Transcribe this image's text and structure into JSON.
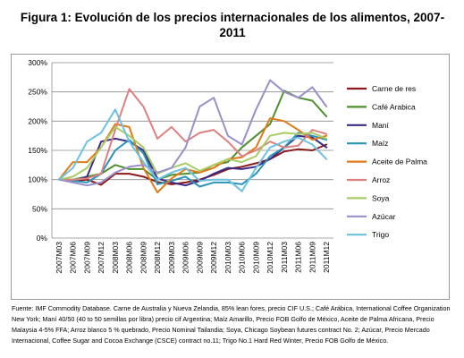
{
  "figure": {
    "title": "Figura 1: Evolución de los precios internacionales de los alimentos, 2007-2011",
    "footnote": "Fuente: IMF Commodity Database. Carne de Australia y Nueva Zelandia, 85% lean fores, precio CIF U.S.; Café Arábica, International Coffee Organization New York; Maní 40/50 (40 to 50 semillas por libra) precio cif Argentina; Maíz Amarillo, Precio FOB Golfo de México, Aceite de Palma Africana, Precio Malaysia 4-5% FFA; Arroz blanco 5 % quebrado, Precio Nominal Tailandia; Soya, Chicago Soybean futures contract No. 2; Azúcar, Precio Mercado Internacional, Coffee Sugar and Cocoa Exchange (CSCE) contract no.11; Trigo No.1 Hard Red Winter, Precio FOB Golfo de México."
  },
  "chart_data": {
    "type": "line",
    "title": "Figura 1: Evolución de los precios internacionales de los alimentos, 2007-2011",
    "xlabel": "",
    "ylabel": "",
    "ylim": [
      0,
      3
    ],
    "yticks": [
      "0%",
      "50%",
      "100%",
      "150%",
      "200%",
      "250%",
      "300%"
    ],
    "grid": true,
    "legend_position": "right",
    "x": [
      "2007M03",
      "2007M06",
      "2007M09",
      "2007M12",
      "2008M03",
      "2008M06",
      "2008M09",
      "2008M12",
      "2009M03",
      "2009M06",
      "2009M09",
      "2009M12",
      "2010M03",
      "2010M06",
      "2010M09",
      "2010M12",
      "2011M03",
      "2011M06",
      "2011M09",
      "2011M12"
    ],
    "series": [
      {
        "name": "Carne de res",
        "color": "#8b1a1a",
        "values": [
          1.0,
          0.98,
          1.0,
          0.91,
          1.1,
          1.1,
          1.05,
          0.96,
          0.92,
          0.95,
          1.0,
          1.08,
          1.18,
          1.22,
          1.28,
          1.35,
          1.48,
          1.52,
          1.5,
          1.6
        ]
      },
      {
        "name": "Café Arabica",
        "color": "#4e8f2e",
        "values": [
          1.0,
          1.0,
          1.05,
          1.1,
          1.25,
          1.18,
          1.18,
          1.0,
          1.08,
          1.1,
          1.12,
          1.25,
          1.3,
          1.55,
          1.75,
          1.95,
          2.52,
          2.4,
          2.35,
          2.08
        ]
      },
      {
        "name": "Maní",
        "color": "#3b2a86",
        "values": [
          1.0,
          0.98,
          1.05,
          1.65,
          1.7,
          1.65,
          1.5,
          1.02,
          0.95,
          0.9,
          0.98,
          1.1,
          1.2,
          1.18,
          1.22,
          1.35,
          1.55,
          1.75,
          1.72,
          1.55
        ]
      },
      {
        "name": "Maíz",
        "color": "#2c93b8",
        "values": [
          1.0,
          0.98,
          0.95,
          1.1,
          1.5,
          1.68,
          1.45,
          0.92,
          0.98,
          1.05,
          0.88,
          0.95,
          0.95,
          0.92,
          1.1,
          1.4,
          1.55,
          1.8,
          1.75,
          1.68
        ]
      },
      {
        "name": "Aceite de Palma",
        "color": "#e07b1a",
        "values": [
          1.0,
          1.3,
          1.3,
          1.55,
          1.95,
          1.9,
          1.2,
          0.78,
          1.02,
          1.18,
          1.12,
          1.2,
          1.35,
          1.38,
          1.55,
          2.05,
          2.0,
          1.85,
          1.68,
          1.75
        ]
      },
      {
        "name": "Arroz",
        "color": "#dd8080",
        "values": [
          1.0,
          1.0,
          1.02,
          1.1,
          1.85,
          2.55,
          2.25,
          1.7,
          1.9,
          1.65,
          1.8,
          1.85,
          1.65,
          1.4,
          1.5,
          1.65,
          1.55,
          1.58,
          1.85,
          1.78
        ]
      },
      {
        "name": "Soya",
        "color": "#a8cc66",
        "values": [
          1.0,
          1.05,
          1.2,
          1.55,
          1.9,
          1.75,
          1.55,
          1.1,
          1.2,
          1.28,
          1.15,
          1.25,
          1.35,
          1.3,
          1.4,
          1.75,
          1.8,
          1.78,
          1.8,
          1.7
        ]
      },
      {
        "name": "Azúcar",
        "color": "#9b8fc9",
        "values": [
          1.0,
          0.95,
          0.9,
          0.95,
          1.12,
          1.22,
          1.25,
          1.12,
          1.2,
          1.55,
          2.25,
          2.4,
          1.75,
          1.6,
          2.2,
          2.7,
          2.5,
          2.4,
          2.58,
          2.25
        ]
      },
      {
        "name": "Trigo",
        "color": "#6cc2e0",
        "values": [
          1.0,
          1.2,
          1.65,
          1.8,
          2.2,
          1.65,
          1.3,
          1.0,
          1.12,
          1.2,
          0.98,
          1.0,
          1.0,
          0.8,
          1.2,
          1.55,
          1.65,
          1.72,
          1.6,
          1.35
        ]
      }
    ]
  }
}
